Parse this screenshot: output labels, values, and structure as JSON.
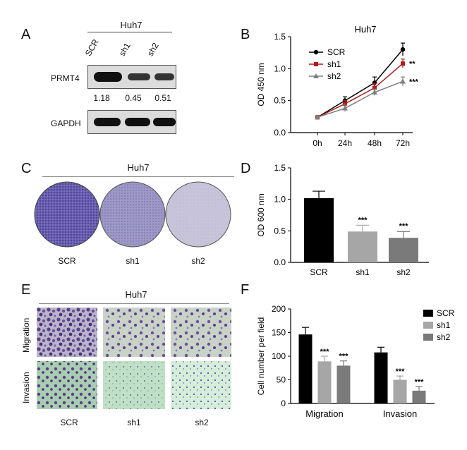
{
  "panel_labels": {
    "A": "A",
    "B": "B",
    "C": "C",
    "D": "D",
    "E": "E",
    "F": "F"
  },
  "panelA": {
    "cell_line": "Huh7",
    "lanes": [
      "SCR",
      "sh1",
      "sh2"
    ],
    "row1_label": "PRMT4",
    "row2_label": "GAPDH",
    "quant": [
      "1.18",
      "0.45",
      "0.51"
    ]
  },
  "panelC": {
    "cell_line": "Huh7",
    "labels": [
      "SCR",
      "sh1",
      "sh2"
    ]
  },
  "panelE": {
    "cell_line": "Huh7",
    "row_labels": [
      "Migration",
      "Invasion"
    ],
    "col_labels": [
      "SCR",
      "sh1",
      "sh2"
    ]
  },
  "colors": {
    "scr": "#000000",
    "sh1": "#b01c1c",
    "sh2": "#7f7f7f",
    "bar_black": "#000000",
    "bar_light": "#a6a6a6",
    "bar_dark": "#7a7a7a",
    "stain": "#5a4fa0"
  },
  "chart_data": [
    {
      "id": "B",
      "type": "line",
      "title": "Huh7",
      "xlabel": "",
      "ylabel": "OD 450 nm",
      "categories": [
        "0h",
        "24h",
        "48h",
        "72h"
      ],
      "ylim": [
        0,
        1.5
      ],
      "yticks": [
        "0.0",
        "0.5",
        "1.0",
        "1.5"
      ],
      "legend": "top-left",
      "series": [
        {
          "name": "SCR",
          "values": [
            0.24,
            0.5,
            0.78,
            1.3
          ],
          "err": [
            0.02,
            0.06,
            0.09,
            0.1
          ],
          "annot": ""
        },
        {
          "name": "sh1",
          "values": [
            0.24,
            0.45,
            0.7,
            1.08
          ],
          "err": [
            0.02,
            0.05,
            0.07,
            0.07
          ],
          "annot": "**"
        },
        {
          "name": "sh2",
          "values": [
            0.24,
            0.38,
            0.63,
            0.8
          ],
          "err": [
            0.02,
            0.05,
            0.05,
            0.07
          ],
          "annot": "***"
        }
      ]
    },
    {
      "id": "D",
      "type": "bar",
      "xlabel": "",
      "ylabel": "OD 600 nm",
      "categories": [
        "SCR",
        "sh1",
        "sh2"
      ],
      "values": [
        1.02,
        0.49,
        0.39
      ],
      "err": [
        0.11,
        0.1,
        0.1
      ],
      "annot": [
        "",
        "***",
        "***"
      ],
      "ylim": [
        0,
        1.5
      ],
      "yticks": [
        "0.0",
        "0.5",
        "1.0",
        "1.5"
      ]
    },
    {
      "id": "F",
      "type": "bar",
      "xlabel": "",
      "ylabel": "Cell number per field",
      "categories": [
        "Migration",
        "Invasion"
      ],
      "ylim": [
        0,
        200
      ],
      "yticks": [
        "0",
        "50",
        "100",
        "150",
        "200"
      ],
      "legend": "top-right",
      "series": [
        {
          "name": "SCR",
          "values": [
            146,
            108
          ],
          "err": [
            15,
            11
          ],
          "annot": [
            "",
            ""
          ]
        },
        {
          "name": "sh1",
          "values": [
            89,
            50
          ],
          "err": [
            11,
            8
          ],
          "annot": [
            "***",
            "***"
          ]
        },
        {
          "name": "sh2",
          "values": [
            80,
            27
          ],
          "err": [
            10,
            9
          ],
          "annot": [
            "***",
            "***"
          ]
        }
      ]
    }
  ]
}
